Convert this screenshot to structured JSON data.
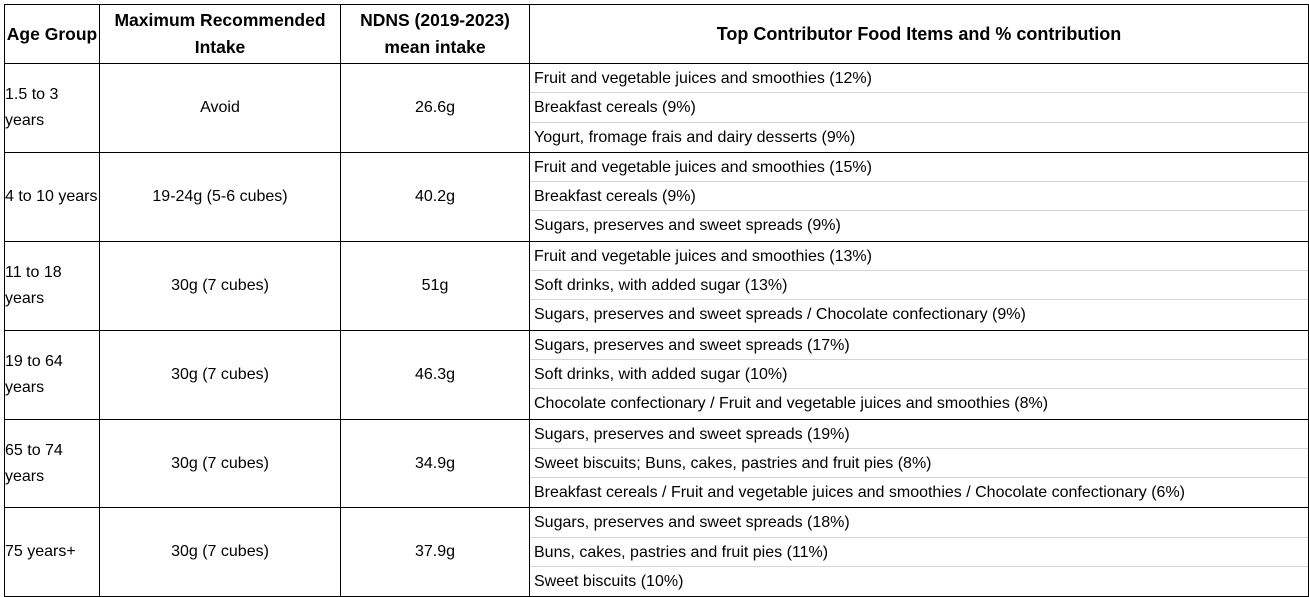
{
  "headers": {
    "age_group": "Age Group",
    "max_intake": "Maximum Recommended Intake",
    "ndns": "NDNS (2019-2023) mean intake",
    "top_contributors": "Top Contributor Food Items and % contribution"
  },
  "rows": [
    {
      "age": "1.5 to 3 years",
      "max": "Avoid",
      "mean": "26.6g",
      "foods": [
        "Fruit and vegetable juices and smoothies (12%)",
        "Breakfast cereals (9%)",
        "Yogurt, fromage frais and dairy desserts (9%)"
      ]
    },
    {
      "age": "4 to 10 years",
      "max": "19-24g (5-6 cubes)",
      "mean": "40.2g",
      "foods": [
        "Fruit and vegetable juices and smoothies (15%)",
        "Breakfast cereals (9%)",
        "Sugars, preserves and sweet spreads (9%)"
      ]
    },
    {
      "age": "11 to 18 years",
      "max": "30g (7 cubes)",
      "mean": "51g",
      "foods": [
        "Fruit and vegetable juices and smoothies (13%)",
        "Soft drinks, with added sugar (13%)",
        "Sugars, preserves and sweet spreads / Chocolate confectionary (9%)"
      ]
    },
    {
      "age": "19 to 64 years",
      "max": "30g (7 cubes)",
      "mean": "46.3g",
      "foods": [
        "Sugars, preserves and sweet spreads (17%)",
        "Soft drinks, with added sugar (10%)",
        "Chocolate confectionary / Fruit and vegetable juices and smoothies (8%)"
      ]
    },
    {
      "age": "65 to 74 years",
      "max": "30g (7 cubes)",
      "mean": "34.9g",
      "foods": [
        "Sugars, preserves and sweet spreads (19%)",
        "Sweet biscuits; Buns, cakes, pastries and fruit pies (8%)",
        "Breakfast cereals / Fruit and vegetable juices and smoothies / Chocolate confectionary (6%)"
      ]
    },
    {
      "age": "75 years+",
      "max": "30g (7 cubes)",
      "mean": "37.9g",
      "foods": [
        "Sugars, preserves and sweet spreads (18%)",
        "Buns, cakes, pastries and fruit pies (11%)",
        "Sweet biscuits (10%)"
      ]
    }
  ]
}
